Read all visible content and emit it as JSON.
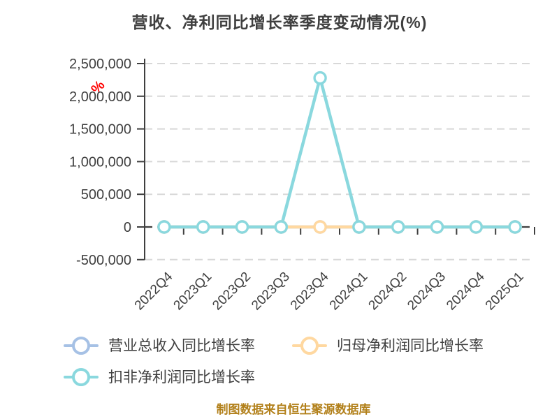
{
  "chart": {
    "title": "营收、净利同比增长率季度变动情况(%)",
    "title_color": "#3f3f3f",
    "y_unit_label": "%",
    "y_unit_color": "#ff0000",
    "caption": "制图数据来自恒生聚源数据库",
    "caption_color": "#b2801a",
    "axis_color": "#3f3f3f",
    "tick_label_color": "#3f3f3f"
  },
  "chart_data": {
    "type": "line",
    "title": "营收、净利同比增长率季度变动情况(%)",
    "categories": [
      "2022Q4",
      "2023Q1",
      "2023Q2",
      "2023Q3",
      "2023Q4",
      "2024Q1",
      "2024Q2",
      "2024Q3",
      "2024Q4",
      "2025Q1"
    ],
    "series": [
      {
        "name": "营业总收入同比增长率",
        "color": "#a6c1e5",
        "marker": "circle",
        "values": [
          0,
          0,
          0,
          0,
          0,
          0,
          0,
          0,
          0,
          0
        ]
      },
      {
        "name": "归母净利润同比增长率",
        "color": "#ffd8a0",
        "marker": "circle",
        "values": [
          0,
          0,
          0,
          0,
          0,
          0,
          0,
          0,
          0,
          0
        ]
      },
      {
        "name": "扣非净利润同比增长率",
        "color": "#8ad8de",
        "marker": "circle",
        "values": [
          0,
          0,
          0,
          0,
          2280000,
          0,
          0,
          0,
          0,
          0
        ]
      }
    ],
    "xlabel": "",
    "ylabel": "%",
    "ylim": [
      -500000,
      2500000
    ],
    "yticks": [
      {
        "label": "2,500,000",
        "value": 2500000
      },
      {
        "label": "2,000,000",
        "value": 2000000
      },
      {
        "label": "1,500,000",
        "value": 1500000
      },
      {
        "label": "1,000,000",
        "value": 1000000
      },
      {
        "label": "500,000",
        "value": 500000
      },
      {
        "label": "0",
        "value": 0
      },
      {
        "label": "-500,000",
        "value": -500000
      }
    ],
    "grid": true,
    "gridline_color": "#d8d8d8",
    "zero_line_color": "#3f3f3f",
    "legend_position": "bottom"
  }
}
